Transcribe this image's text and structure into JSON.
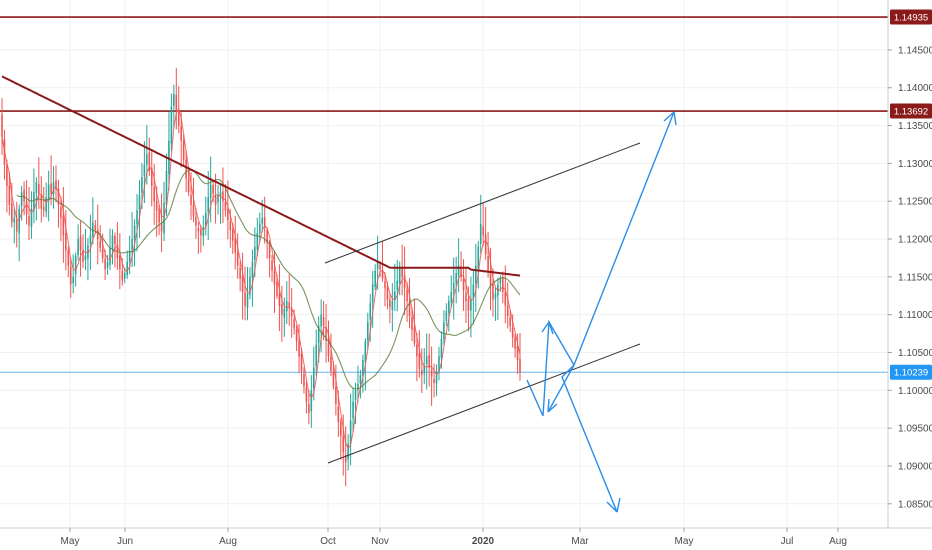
{
  "chart_data": {
    "type": "candlestick",
    "instrument_note": "",
    "x_tick_labels": [
      "May",
      "Jun",
      "Aug",
      "Oct",
      "Nov",
      "2020",
      "Mar",
      "May",
      "Jul",
      "Aug"
    ],
    "y_tick_labels": [
      "1.14500",
      "1.14000",
      "1.13500",
      "1.13000",
      "1.12500",
      "1.12000",
      "1.11500",
      "1.11000",
      "1.10500",
      "1.10000",
      "1.09500",
      "1.09000",
      "1.08500"
    ],
    "y_ticks": [
      1.145,
      1.14,
      1.135,
      1.13,
      1.125,
      1.12,
      1.115,
      1.11,
      1.105,
      1.1,
      1.095,
      1.09,
      1.085
    ],
    "ylim": [
      1.0818,
      1.1516
    ],
    "price_badges": [
      {
        "value": 1.14935,
        "label": "1.14935",
        "color": "#8b1a1a"
      },
      {
        "value": 1.13692,
        "label": "1.13692",
        "color": "#8b1a1a"
      },
      {
        "value": 1.10239,
        "label": "1.10239",
        "color": "#2196f3"
      }
    ],
    "horizontal_lines": [
      {
        "value": 1.14935,
        "color": "#8b1a1a"
      },
      {
        "value": 1.13692,
        "color": "#8b1a1a"
      },
      {
        "value": 1.10239,
        "color": "#64b5f6"
      }
    ],
    "closes": [
      1.1335,
      1.1298,
      1.127,
      1.1245,
      1.1222,
      1.1228,
      1.121,
      1.124,
      1.1262,
      1.125,
      1.1233,
      1.1218,
      1.124,
      1.1262,
      1.1275,
      1.126,
      1.124,
      1.1238,
      1.1255,
      1.1272,
      1.126,
      1.1275,
      1.1268,
      1.1245,
      1.1228,
      1.1205,
      1.1185,
      1.1165,
      1.114,
      1.115,
      1.1178,
      1.12,
      1.1185,
      1.117,
      1.1178,
      1.1192,
      1.1205,
      1.1222,
      1.1212,
      1.12,
      1.1188,
      1.1175,
      1.116,
      1.117,
      1.1188,
      1.1205,
      1.1193,
      1.1175,
      1.116,
      1.1145,
      1.1155,
      1.117,
      1.1185,
      1.12,
      1.1218,
      1.1238,
      1.1258,
      1.1282,
      1.1298,
      1.1312,
      1.129,
      1.127,
      1.125,
      1.1238,
      1.1222,
      1.121,
      1.1248,
      1.129,
      1.133,
      1.1375,
      1.1392,
      1.137,
      1.135,
      1.133,
      1.1305,
      1.128,
      1.1262,
      1.1245,
      1.123,
      1.1218,
      1.121,
      1.1205,
      1.1215,
      1.1235,
      1.1255,
      1.1272,
      1.126,
      1.1245,
      1.1258,
      1.1262,
      1.125,
      1.1238,
      1.1225,
      1.1212,
      1.1198,
      1.1182,
      1.1165,
      1.1148,
      1.113,
      1.1112,
      1.1128,
      1.115,
      1.117,
      1.119,
      1.1208,
      1.122,
      1.1228,
      1.1215,
      1.1195,
      1.1175,
      1.1158,
      1.114,
      1.1125,
      1.1112,
      1.11,
      1.1108,
      1.1118,
      1.111,
      1.1098,
      1.1082,
      1.1065,
      1.1045,
      1.1025,
      1.1005,
      1.0985,
      1.097,
      1.1,
      1.103,
      1.106,
      1.1085,
      1.11,
      1.1085,
      1.1065,
      1.1045,
      1.1025,
      1.1005,
      1.0982,
      1.0958,
      1.094,
      1.0918,
      1.0905,
      1.093,
      1.096,
      1.0985,
      1.1,
      1.1008,
      1.102,
      1.104,
      1.1065,
      1.109,
      1.1115,
      1.114,
      1.1158,
      1.117,
      1.116,
      1.1148,
      1.1135,
      1.112,
      1.111,
      1.1118,
      1.113,
      1.1145,
      1.1162,
      1.115,
      1.1135,
      1.1118,
      1.1098,
      1.108,
      1.1062,
      1.1045,
      1.1028,
      1.102,
      1.1032,
      1.1045,
      1.103,
      1.1018,
      1.101,
      1.1025,
      1.1045,
      1.1068,
      1.109,
      1.1105,
      1.1118,
      1.113,
      1.1142,
      1.1155,
      1.1165,
      1.115,
      1.1132,
      1.1118,
      1.1105,
      1.112,
      1.114,
      1.1165,
      1.119,
      1.122,
      1.1205,
      1.118,
      1.1158,
      1.1138,
      1.112,
      1.1128,
      1.114,
      1.1148,
      1.113,
      1.1112,
      1.1098,
      1.1085,
      1.107,
      1.1055,
      1.104,
      1.1024
    ]
  }
}
